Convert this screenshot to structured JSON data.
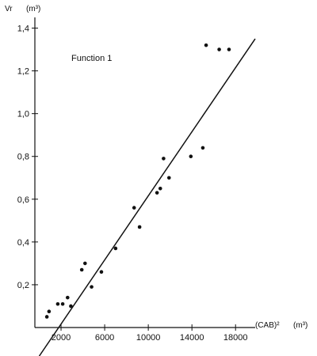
{
  "chart_data": {
    "type": "scatter",
    "title": "",
    "annotation": "Function 1",
    "ylabel": "Vr",
    "ylabel_unit": "(m³)",
    "xlabel": "(CAB)²",
    "xlabel_unit": "(m³)",
    "xlim": [
      -400,
      19800
    ],
    "ylim": [
      0,
      1.45
    ],
    "x_ticks": [
      2000,
      6000,
      10000,
      14000,
      18000
    ],
    "x_tick_labels": [
      "2000",
      "6000",
      "10000",
      "14000",
      "18000"
    ],
    "y_ticks": [
      0.2,
      0.4,
      0.6,
      0.8,
      1.0,
      1.2,
      1.4
    ],
    "y_tick_labels": [
      "0,2",
      "0,4",
      "0,6",
      "0,8",
      "1,0",
      "1,2",
      "1,4"
    ],
    "grid": false,
    "legend": "none",
    "points": [
      {
        "x": 700,
        "y": 0.05
      },
      {
        "x": 900,
        "y": 0.075
      },
      {
        "x": 1700,
        "y": 0.11
      },
      {
        "x": 2150,
        "y": 0.11
      },
      {
        "x": 2600,
        "y": 0.14
      },
      {
        "x": 2900,
        "y": 0.1
      },
      {
        "x": 3900,
        "y": 0.27
      },
      {
        "x": 4200,
        "y": 0.3
      },
      {
        "x": 4800,
        "y": 0.19
      },
      {
        "x": 5700,
        "y": 0.26
      },
      {
        "x": 7000,
        "y": 0.37
      },
      {
        "x": 8700,
        "y": 0.56
      },
      {
        "x": 9200,
        "y": 0.47
      },
      {
        "x": 10800,
        "y": 0.63
      },
      {
        "x": 11100,
        "y": 0.65
      },
      {
        "x": 11400,
        "y": 0.79
      },
      {
        "x": 11900,
        "y": 0.7
      },
      {
        "x": 13900,
        "y": 0.8
      },
      {
        "x": 15000,
        "y": 0.84
      },
      {
        "x": 15300,
        "y": 1.32
      },
      {
        "x": 16500,
        "y": 1.3
      },
      {
        "x": 17400,
        "y": 1.3
      }
    ],
    "fit_line": {
      "x": [
        0,
        19800
      ],
      "y": [
        -0.03,
        1.35
      ]
    },
    "colors": {
      "points": "#111111",
      "line": "#111111",
      "axis": "#111111"
    }
  }
}
